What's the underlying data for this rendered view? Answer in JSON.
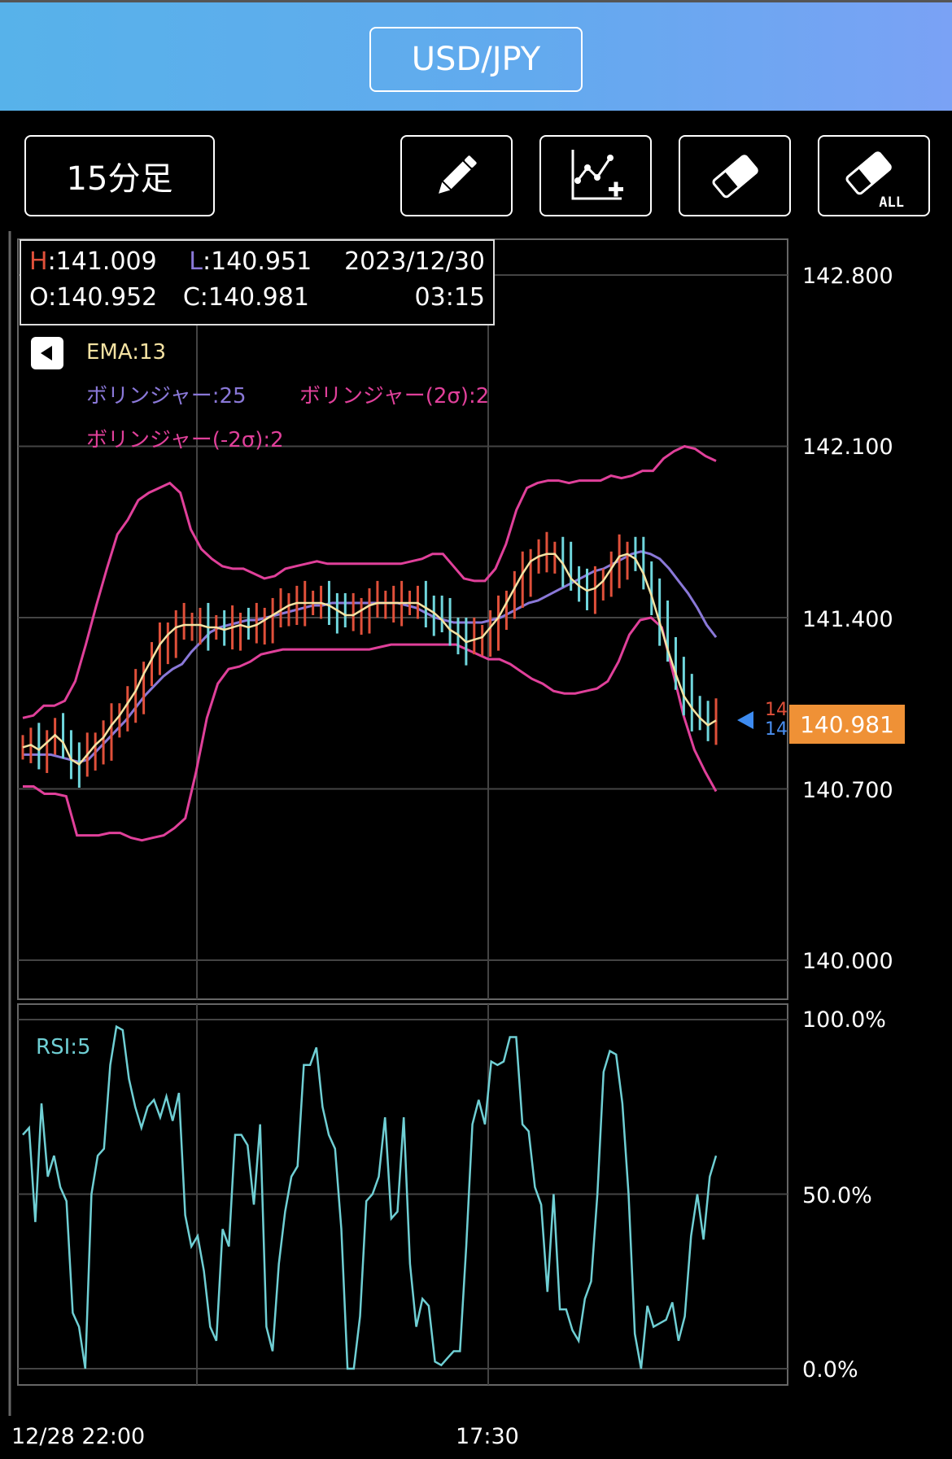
{
  "header": {
    "pair": "USD/JPY"
  },
  "toolbar": {
    "timeframe_label": "15分足",
    "tools": [
      {
        "name": "pencil-icon"
      },
      {
        "name": "add-line-icon"
      },
      {
        "name": "eraser-icon"
      },
      {
        "name": "eraser-all-icon",
        "label": "ALL"
      }
    ]
  },
  "ohlc": {
    "h_key": "H",
    "h_val": ":141.009",
    "l_key": "L",
    "l_val": ":140.951",
    "date": "2023/12/30",
    "o": "O:140.952",
    "c": "C:140.981",
    "time": "03:15"
  },
  "legend": {
    "ema": "EMA:13",
    "bb_mid": "ボリンジャー:25",
    "bb_up": "ボリンジャー(2σ):2",
    "bb_low": "ボリンジャー(-2σ):2",
    "rsi": "RSI:5"
  },
  "colors": {
    "up": "#e0503a",
    "down": "#6fd6dc",
    "ema": "#f4e2a2",
    "bb_mid": "#8a78d8",
    "bb_band": "#e0409a",
    "rsi": "#6fcfd4",
    "grid": "#444444",
    "price_tag": "#ef9136"
  },
  "price_axis": [
    "142.800",
    "142.100",
    "141.400",
    "140.700",
    "140.000"
  ],
  "current_price": "140.981",
  "marker_texts": [
    "14",
    "14"
  ],
  "rsi_axis": [
    "100.0%",
    "50.0%",
    "0.0%"
  ],
  "time_axis": [
    "12/28 22:00",
    "17:30"
  ],
  "chart_data": [
    {
      "type": "candlestick",
      "title": "",
      "ylim": [
        140.0,
        142.8
      ],
      "series": [
        {
          "name": "EMA:13",
          "values": [
            140.87,
            140.88,
            140.86,
            140.89,
            140.92,
            140.89,
            140.82,
            140.8,
            140.84,
            140.88,
            140.91,
            140.96,
            141.0,
            141.05,
            141.1,
            141.17,
            141.23,
            141.29,
            141.33,
            141.36,
            141.37,
            141.37,
            141.37,
            141.36,
            141.36,
            141.35,
            141.36,
            141.37,
            141.36,
            141.37,
            141.39,
            141.41,
            141.43,
            141.45,
            141.46,
            141.46,
            141.46,
            141.46,
            141.45,
            141.43,
            141.41,
            141.41,
            141.43,
            141.45,
            141.46,
            141.46,
            141.46,
            141.46,
            141.46,
            141.46,
            141.44,
            141.42,
            141.39,
            141.35,
            141.33,
            141.3,
            141.31,
            141.32,
            141.36,
            141.4,
            141.46,
            141.52,
            141.58,
            141.63,
            141.65,
            141.66,
            141.66,
            141.62,
            141.56,
            141.53,
            141.51,
            141.52,
            141.55,
            141.6,
            141.65,
            141.66,
            141.64,
            141.58,
            141.49,
            141.38,
            141.27,
            141.17,
            141.08,
            141.03,
            140.99,
            140.96,
            140.98
          ]
        },
        {
          "name": "ボリンジャー:25",
          "values": [
            140.84,
            140.84,
            140.84,
            140.84,
            140.83,
            140.82,
            140.81,
            140.82,
            140.86,
            140.9,
            140.94,
            140.98,
            141.03,
            141.08,
            141.12,
            141.16,
            141.19,
            141.21,
            141.26,
            141.3,
            141.34,
            141.36,
            141.37,
            141.38,
            141.39,
            141.39,
            141.4,
            141.41,
            141.42,
            141.43,
            141.44,
            141.45,
            141.45,
            141.46,
            141.46,
            141.46,
            141.46,
            141.46,
            141.46,
            141.46,
            141.46,
            141.45,
            141.44,
            141.42,
            141.4,
            141.39,
            141.38,
            141.38,
            141.38,
            141.38,
            141.39,
            141.4,
            141.42,
            141.44,
            141.46,
            141.47,
            141.49,
            141.51,
            141.53,
            141.55,
            141.57,
            141.59,
            141.6,
            141.62,
            141.64,
            141.66,
            141.67,
            141.66,
            141.64,
            141.6,
            141.55,
            141.5,
            141.44,
            141.37,
            141.32
          ]
        },
        {
          "name": "ボリンジャー(2σ):2",
          "values": [
            140.99,
            141.0,
            141.04,
            141.04,
            141.06,
            141.14,
            141.29,
            141.45,
            141.6,
            141.74,
            141.8,
            141.88,
            141.91,
            141.93,
            141.95,
            141.91,
            141.76,
            141.68,
            141.64,
            141.61,
            141.6,
            141.6,
            141.58,
            141.56,
            141.57,
            141.6,
            141.61,
            141.62,
            141.63,
            141.62,
            141.62,
            141.62,
            141.62,
            141.62,
            141.62,
            141.62,
            141.62,
            141.63,
            141.64,
            141.66,
            141.66,
            141.61,
            141.56,
            141.55,
            141.55,
            141.6,
            141.7,
            141.84,
            141.93,
            141.95,
            141.96,
            141.96,
            141.95,
            141.96,
            141.96,
            141.96,
            141.98,
            141.97,
            141.98,
            142.0,
            142.0,
            142.05,
            142.08,
            142.1,
            142.09,
            142.06,
            142.04
          ]
        },
        {
          "name": "ボリンジャー(-2σ):2",
          "values": [
            140.71,
            140.71,
            140.68,
            140.68,
            140.67,
            140.51,
            140.51,
            140.51,
            140.52,
            140.52,
            140.5,
            140.49,
            140.5,
            140.51,
            140.54,
            140.58,
            140.77,
            140.99,
            141.13,
            141.19,
            141.2,
            141.22,
            141.25,
            141.26,
            141.27,
            141.27,
            141.27,
            141.27,
            141.27,
            141.27,
            141.27,
            141.27,
            141.27,
            141.28,
            141.29,
            141.29,
            141.29,
            141.29,
            141.29,
            141.29,
            141.29,
            141.27,
            141.25,
            141.23,
            141.23,
            141.21,
            141.18,
            141.15,
            141.13,
            141.1,
            141.09,
            141.09,
            141.1,
            141.11,
            141.14,
            141.22,
            141.33,
            141.39,
            141.4,
            141.36,
            141.18,
            141.0,
            140.86,
            140.77,
            140.69
          ]
        }
      ]
    },
    {
      "type": "line",
      "title": "",
      "ylabel": "",
      "ylim": [
        0,
        100
      ],
      "series": [
        {
          "name": "RSI:5",
          "values": [
            67,
            69,
            42,
            76,
            55,
            61,
            52,
            48,
            16,
            12,
            0,
            50,
            61,
            63,
            87,
            98,
            97,
            83,
            75,
            69,
            75,
            77,
            72,
            78,
            71,
            79,
            44,
            35,
            38,
            28,
            12,
            8,
            40,
            35,
            67,
            67,
            64,
            47,
            70,
            12,
            5,
            30,
            45,
            55,
            58,
            87,
            87,
            92,
            75,
            67,
            63,
            40,
            0,
            0,
            15,
            48,
            50,
            55,
            72,
            43,
            45,
            72,
            30,
            12,
            20,
            18,
            2,
            1,
            3,
            5,
            5,
            35,
            70,
            77,
            70,
            88,
            87,
            88,
            95,
            95,
            70,
            68,
            52,
            47,
            22,
            50,
            17,
            17,
            11,
            8,
            20,
            25,
            50,
            85,
            91,
            90,
            76,
            50,
            10,
            0,
            18,
            12,
            13,
            14,
            19,
            8,
            15,
            38,
            50,
            37,
            55,
            61
          ]
        }
      ]
    }
  ]
}
